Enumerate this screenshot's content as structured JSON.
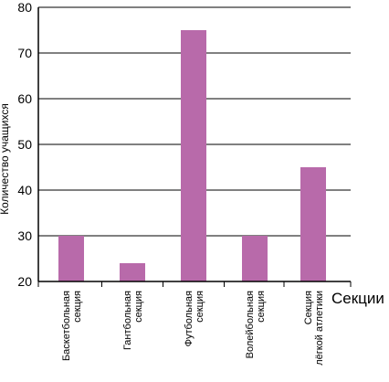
{
  "chart_data": {
    "type": "bar",
    "title": "",
    "xlabel": "Секции",
    "ylabel": "Количество учащихся",
    "ylim": [
      20,
      80
    ],
    "yticks": [
      20,
      30,
      40,
      50,
      60,
      70,
      80
    ],
    "grid": true,
    "categories": [
      [
        "Баскетбольная",
        "секция"
      ],
      [
        "Гантбольная",
        "секция"
      ],
      [
        "Футбольная",
        "секция"
      ],
      [
        "Волейбольная",
        "секция"
      ],
      [
        "Секция",
        "лёгкой атлетики"
      ]
    ],
    "values": [
      30,
      24,
      75,
      30,
      45
    ],
    "bar_color": "#b86aaa",
    "axis_color": "#000000"
  }
}
